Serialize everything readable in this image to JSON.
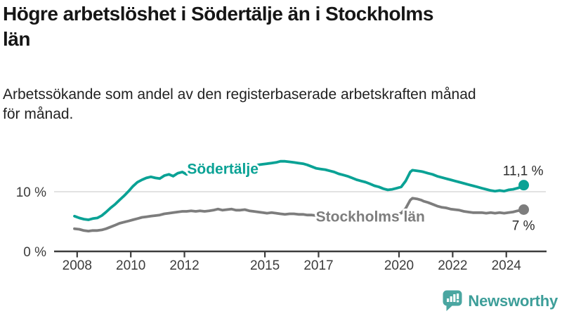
{
  "title": "Högre arbetslöshet i Södertälje än i Stockholms\nlän",
  "subtitle": "Arbetssökande som andel av den registerbaserade arbetskraften månad\nför månad.",
  "branding": {
    "logo_text": "Newsworthy",
    "logo_icon": "bar-chart-speech-bubble-icon",
    "text_color": "#3d9e99",
    "icon_color": "#4aa6a1"
  },
  "colors": {
    "sodertalje": "#0aa295",
    "stockholms_lan": "#7d7d7d",
    "axis": "#3c3c3c",
    "gridline": "#d9d9d9",
    "value_label": "#2b2b2b"
  },
  "chart_data": {
    "type": "line",
    "title": "",
    "xlabel": "",
    "ylabel": "",
    "unit": "%",
    "xlim": [
      2007.9,
      2025.5
    ],
    "ylim": [
      0,
      17
    ],
    "gridlines": [
      10
    ],
    "baseline": 0,
    "legend_position": "inline-labels",
    "x_ticks": [
      {
        "value": 2008,
        "label": "2008"
      },
      {
        "value": 2010,
        "label": "2010"
      },
      {
        "value": 2012,
        "label": "2012"
      },
      {
        "value": 2015,
        "label": "2015"
      },
      {
        "value": 2017,
        "label": "2017"
      },
      {
        "value": 2020,
        "label": "2020"
      },
      {
        "value": 2022,
        "label": "2022"
      },
      {
        "value": 2024,
        "label": "2024"
      }
    ],
    "y_ticks": [
      {
        "value": 10,
        "label": "10 %"
      },
      {
        "value": 0,
        "label": "0 %"
      }
    ],
    "series": [
      {
        "name": "Södertälje",
        "color": "#0aa295",
        "end_value": 11.1,
        "end_label": "11,1 %",
        "label_at": [
          2012.1,
          13.0
        ],
        "end_label_offset": [
          28,
          -14
        ],
        "points": [
          [
            2007.9,
            5.9
          ],
          [
            2008.08,
            5.6
          ],
          [
            2008.25,
            5.4
          ],
          [
            2008.42,
            5.3
          ],
          [
            2008.58,
            5.5
          ],
          [
            2008.75,
            5.6
          ],
          [
            2008.92,
            6.0
          ],
          [
            2009.08,
            6.6
          ],
          [
            2009.25,
            7.3
          ],
          [
            2009.42,
            7.9
          ],
          [
            2009.58,
            8.6
          ],
          [
            2009.75,
            9.3
          ],
          [
            2009.92,
            10.1
          ],
          [
            2010.08,
            10.9
          ],
          [
            2010.25,
            11.6
          ],
          [
            2010.42,
            12.0
          ],
          [
            2010.58,
            12.3
          ],
          [
            2010.75,
            12.5
          ],
          [
            2010.92,
            12.3
          ],
          [
            2011.08,
            12.2
          ],
          [
            2011.25,
            12.7
          ],
          [
            2011.42,
            12.9
          ],
          [
            2011.58,
            12.6
          ],
          [
            2011.75,
            13.1
          ],
          [
            2011.92,
            13.3
          ],
          [
            2012.08,
            12.9
          ],
          [
            2012.25,
            13.3
          ],
          [
            2012.42,
            13.5
          ],
          [
            2012.58,
            13.1
          ],
          [
            2012.75,
            13.4
          ],
          [
            2012.92,
            13.2
          ],
          [
            2013.08,
            13.5
          ],
          [
            2013.25,
            13.6
          ],
          [
            2013.42,
            13.4
          ],
          [
            2013.58,
            13.6
          ],
          [
            2013.75,
            13.7
          ],
          [
            2013.92,
            13.5
          ],
          [
            2014.08,
            13.8
          ],
          [
            2014.25,
            14.0
          ],
          [
            2014.42,
            14.2
          ],
          [
            2014.58,
            14.3
          ],
          [
            2014.75,
            14.5
          ],
          [
            2014.92,
            14.6
          ],
          [
            2015.08,
            14.7
          ],
          [
            2015.25,
            14.8
          ],
          [
            2015.42,
            14.9
          ],
          [
            2015.58,
            15.1
          ],
          [
            2015.75,
            15.1
          ],
          [
            2015.92,
            15.0
          ],
          [
            2016.08,
            14.9
          ],
          [
            2016.25,
            14.8
          ],
          [
            2016.42,
            14.7
          ],
          [
            2016.58,
            14.5
          ],
          [
            2016.75,
            14.2
          ],
          [
            2016.92,
            13.9
          ],
          [
            2017.08,
            13.8
          ],
          [
            2017.25,
            13.7
          ],
          [
            2017.42,
            13.5
          ],
          [
            2017.58,
            13.3
          ],
          [
            2017.75,
            13.0
          ],
          [
            2017.92,
            12.8
          ],
          [
            2018.08,
            12.6
          ],
          [
            2018.25,
            12.3
          ],
          [
            2018.42,
            12.0
          ],
          [
            2018.58,
            11.8
          ],
          [
            2018.75,
            11.6
          ],
          [
            2018.92,
            11.3
          ],
          [
            2019.08,
            11.0
          ],
          [
            2019.25,
            10.8
          ],
          [
            2019.42,
            10.5
          ],
          [
            2019.58,
            10.3
          ],
          [
            2019.75,
            10.4
          ],
          [
            2019.92,
            10.6
          ],
          [
            2020.08,
            10.8
          ],
          [
            2020.25,
            11.8
          ],
          [
            2020.42,
            13.3
          ],
          [
            2020.5,
            13.6
          ],
          [
            2020.67,
            13.5
          ],
          [
            2020.83,
            13.4
          ],
          [
            2020.92,
            13.3
          ],
          [
            2021.08,
            13.1
          ],
          [
            2021.25,
            12.9
          ],
          [
            2021.42,
            12.6
          ],
          [
            2021.58,
            12.4
          ],
          [
            2021.75,
            12.2
          ],
          [
            2021.92,
            12.0
          ],
          [
            2022.08,
            11.8
          ],
          [
            2022.25,
            11.6
          ],
          [
            2022.42,
            11.4
          ],
          [
            2022.58,
            11.2
          ],
          [
            2022.75,
            11.0
          ],
          [
            2022.92,
            10.8
          ],
          [
            2023.08,
            10.6
          ],
          [
            2023.25,
            10.4
          ],
          [
            2023.42,
            10.2
          ],
          [
            2023.58,
            10.1
          ],
          [
            2023.75,
            10.2
          ],
          [
            2023.92,
            10.1
          ],
          [
            2024.08,
            10.3
          ],
          [
            2024.25,
            10.4
          ],
          [
            2024.42,
            10.6
          ],
          [
            2024.55,
            10.8
          ],
          [
            2024.65,
            11.1
          ]
        ]
      },
      {
        "name": "Stockholms län",
        "color": "#7d7d7d",
        "end_value": 7.0,
        "end_label": "7 %",
        "label_at": [
          2016.9,
          5.0
        ],
        "end_label_offset": [
          16,
          29
        ],
        "points": [
          [
            2007.9,
            3.8
          ],
          [
            2008.08,
            3.7
          ],
          [
            2008.25,
            3.5
          ],
          [
            2008.42,
            3.4
          ],
          [
            2008.58,
            3.5
          ],
          [
            2008.75,
            3.5
          ],
          [
            2008.92,
            3.6
          ],
          [
            2009.08,
            3.8
          ],
          [
            2009.25,
            4.1
          ],
          [
            2009.42,
            4.4
          ],
          [
            2009.58,
            4.7
          ],
          [
            2009.75,
            4.9
          ],
          [
            2009.92,
            5.1
          ],
          [
            2010.08,
            5.3
          ],
          [
            2010.25,
            5.5
          ],
          [
            2010.42,
            5.7
          ],
          [
            2010.58,
            5.8
          ],
          [
            2010.75,
            5.9
          ],
          [
            2010.92,
            6.0
          ],
          [
            2011.08,
            6.1
          ],
          [
            2011.25,
            6.3
          ],
          [
            2011.42,
            6.4
          ],
          [
            2011.58,
            6.5
          ],
          [
            2011.75,
            6.6
          ],
          [
            2011.92,
            6.7
          ],
          [
            2012.08,
            6.7
          ],
          [
            2012.25,
            6.8
          ],
          [
            2012.42,
            6.7
          ],
          [
            2012.58,
            6.8
          ],
          [
            2012.75,
            6.7
          ],
          [
            2012.92,
            6.8
          ],
          [
            2013.08,
            6.9
          ],
          [
            2013.25,
            7.1
          ],
          [
            2013.42,
            6.9
          ],
          [
            2013.58,
            7.0
          ],
          [
            2013.75,
            7.1
          ],
          [
            2013.92,
            6.9
          ],
          [
            2014.08,
            6.9
          ],
          [
            2014.25,
            7.0
          ],
          [
            2014.42,
            6.8
          ],
          [
            2014.58,
            6.7
          ],
          [
            2014.75,
            6.6
          ],
          [
            2014.92,
            6.5
          ],
          [
            2015.08,
            6.4
          ],
          [
            2015.25,
            6.5
          ],
          [
            2015.42,
            6.4
          ],
          [
            2015.58,
            6.3
          ],
          [
            2015.75,
            6.2
          ],
          [
            2015.92,
            6.3
          ],
          [
            2016.08,
            6.3
          ],
          [
            2016.25,
            6.2
          ],
          [
            2016.42,
            6.2
          ],
          [
            2016.58,
            6.1
          ],
          [
            2016.75,
            6.1
          ],
          [
            2016.92,
            6.0
          ],
          [
            2017.08,
            6.0
          ],
          [
            2017.25,
            6.1
          ],
          [
            2017.42,
            6.0
          ],
          [
            2017.58,
            6.0
          ],
          [
            2017.75,
            5.9
          ],
          [
            2017.92,
            6.0
          ],
          [
            2018.08,
            5.9
          ],
          [
            2018.25,
            6.0
          ],
          [
            2018.42,
            5.9
          ],
          [
            2018.58,
            5.9
          ],
          [
            2018.75,
            6.0
          ],
          [
            2018.92,
            6.0
          ],
          [
            2019.08,
            6.0
          ],
          [
            2019.25,
            6.1
          ],
          [
            2019.42,
            6.0
          ],
          [
            2019.58,
            6.1
          ],
          [
            2019.75,
            6.2
          ],
          [
            2019.92,
            6.3
          ],
          [
            2020.08,
            6.4
          ],
          [
            2020.25,
            7.2
          ],
          [
            2020.42,
            8.6
          ],
          [
            2020.5,
            8.9
          ],
          [
            2020.67,
            8.8
          ],
          [
            2020.83,
            8.6
          ],
          [
            2020.92,
            8.4
          ],
          [
            2021.08,
            8.2
          ],
          [
            2021.25,
            7.9
          ],
          [
            2021.42,
            7.6
          ],
          [
            2021.58,
            7.4
          ],
          [
            2021.75,
            7.3
          ],
          [
            2021.92,
            7.1
          ],
          [
            2022.08,
            7.0
          ],
          [
            2022.25,
            6.9
          ],
          [
            2022.42,
            6.7
          ],
          [
            2022.58,
            6.6
          ],
          [
            2022.75,
            6.5
          ],
          [
            2022.92,
            6.5
          ],
          [
            2023.08,
            6.5
          ],
          [
            2023.25,
            6.4
          ],
          [
            2023.42,
            6.5
          ],
          [
            2023.58,
            6.4
          ],
          [
            2023.75,
            6.5
          ],
          [
            2023.92,
            6.4
          ],
          [
            2024.08,
            6.5
          ],
          [
            2024.25,
            6.6
          ],
          [
            2024.42,
            6.8
          ],
          [
            2024.55,
            6.9
          ],
          [
            2024.65,
            7.0
          ]
        ]
      }
    ]
  }
}
